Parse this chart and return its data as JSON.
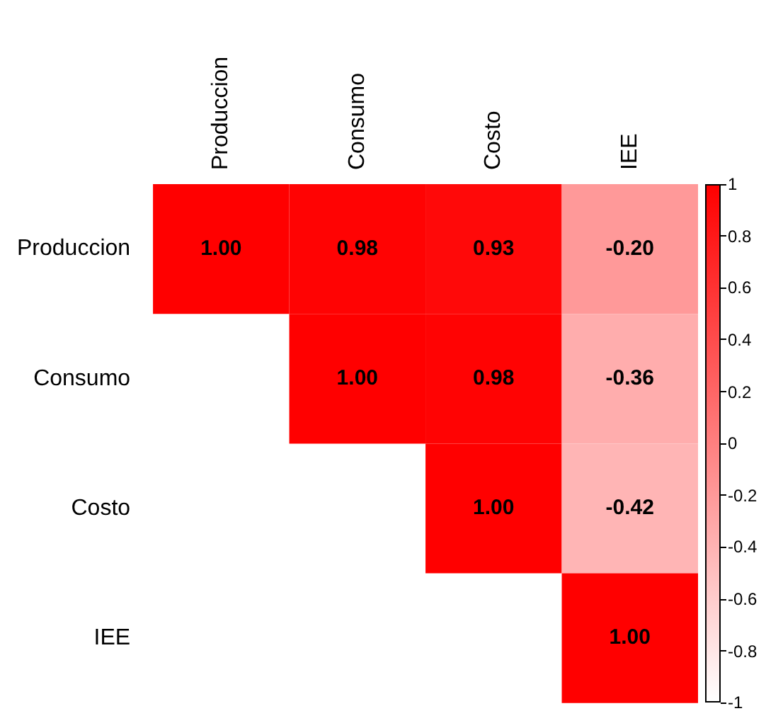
{
  "chart_data": {
    "type": "heatmap",
    "categories": [
      "Produccion",
      "Consumo",
      "Costo",
      "IEE"
    ],
    "y_categories": [
      "Produccion",
      "Consumo",
      "Costo",
      "IEE"
    ],
    "cells": [
      [
        1.0,
        0.98,
        0.93,
        -0.2
      ],
      [
        null,
        1.0,
        0.98,
        -0.36
      ],
      [
        null,
        null,
        1.0,
        -0.42
      ],
      [
        null,
        null,
        null,
        1.0
      ]
    ],
    "cell_labels": [
      [
        "1.00",
        "0.98",
        "0.93",
        "-0.20"
      ],
      [
        null,
        "1.00",
        "0.98",
        "-0.36"
      ],
      [
        null,
        null,
        "1.00",
        "-0.42"
      ],
      [
        null,
        null,
        null,
        "1.00"
      ]
    ],
    "clim": [
      -1,
      1
    ],
    "cticks": [
      1,
      0.8,
      0.6,
      0.4,
      0.2,
      0,
      -0.2,
      -0.4,
      -0.6,
      -0.8,
      -1
    ]
  }
}
